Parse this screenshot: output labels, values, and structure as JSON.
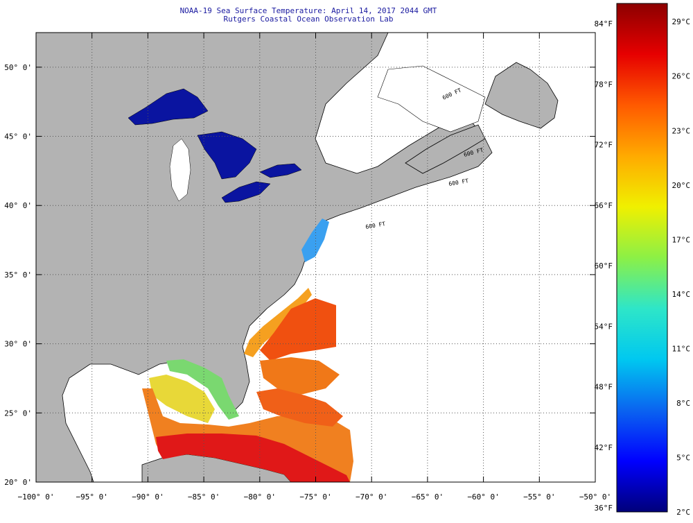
{
  "header": {
    "title": "NOAA-19 Sea Surface Temperature:  April 14, 2017 2044 GMT",
    "subtitle": "Rutgers Coastal Ocean Observation Lab"
  },
  "map": {
    "lon_range": [
      -100,
      -50
    ],
    "lat_range": [
      20,
      52.5
    ],
    "lon_ticks": [
      {
        "value": -100,
        "label": "−100° 0'"
      },
      {
        "value": -95,
        "label": "−95° 0'"
      },
      {
        "value": -90,
        "label": "−90° 0'"
      },
      {
        "value": -85,
        "label": "−85° 0'"
      },
      {
        "value": -80,
        "label": "−80° 0'"
      },
      {
        "value": -75,
        "label": "−75° 0'"
      },
      {
        "value": -70,
        "label": "−70° 0'"
      },
      {
        "value": -65,
        "label": "−65° 0'"
      },
      {
        "value": -60,
        "label": "−60° 0'"
      },
      {
        "value": -55,
        "label": "−55° 0'"
      },
      {
        "value": -50,
        "label": "−50° 0'"
      }
    ],
    "lat_ticks": [
      {
        "value": 20,
        "label": "20° 0'"
      },
      {
        "value": 25,
        "label": "25° 0'"
      },
      {
        "value": 30,
        "label": "30° 0'"
      },
      {
        "value": 35,
        "label": "35° 0'"
      },
      {
        "value": 40,
        "label": "40° 0'"
      },
      {
        "value": 45,
        "label": "45° 0'"
      },
      {
        "value": 50,
        "label": "50° 0'"
      }
    ],
    "depth_contour_labels": [
      "600 FT",
      "600 FT",
      "600 FT",
      "600 FT"
    ],
    "colors": {
      "land": "#b3b3b3",
      "no_data": "#ffffff",
      "lakes": "#0a14a0",
      "grid": "#555555"
    }
  },
  "colorbar": {
    "temp_range_c": [
      2,
      30
    ],
    "fahrenheit_labels": [
      {
        "value_f": 84,
        "label": "84°F"
      },
      {
        "value_f": 78,
        "label": "78°F"
      },
      {
        "value_f": 72,
        "label": "72°F"
      },
      {
        "value_f": 66,
        "label": "66°F"
      },
      {
        "value_f": 60,
        "label": "60°F"
      },
      {
        "value_f": 54,
        "label": "54°F"
      },
      {
        "value_f": 48,
        "label": "48°F"
      },
      {
        "value_f": 42,
        "label": "42°F"
      },
      {
        "value_f": 36,
        "label": "36°F"
      }
    ],
    "celsius_labels": [
      {
        "value_c": 29,
        "label": "29°C"
      },
      {
        "value_c": 26,
        "label": "26°C"
      },
      {
        "value_c": 23,
        "label": "23°C"
      },
      {
        "value_c": 20,
        "label": "20°C"
      },
      {
        "value_c": 17,
        "label": "17°C"
      },
      {
        "value_c": 14,
        "label": "14°C"
      },
      {
        "value_c": 11,
        "label": "11°C"
      },
      {
        "value_c": 8,
        "label": "8°C"
      },
      {
        "value_c": 5,
        "label": "5°C"
      },
      {
        "value_c": 2,
        "label": "2°C"
      }
    ],
    "gradient_stops": [
      "#00007a",
      "#0000ff",
      "#0a64f0",
      "#00c8f0",
      "#2ee6c8",
      "#8cf046",
      "#f0f000",
      "#ffaa00",
      "#ff5a00",
      "#e60000",
      "#8c0000"
    ]
  }
}
